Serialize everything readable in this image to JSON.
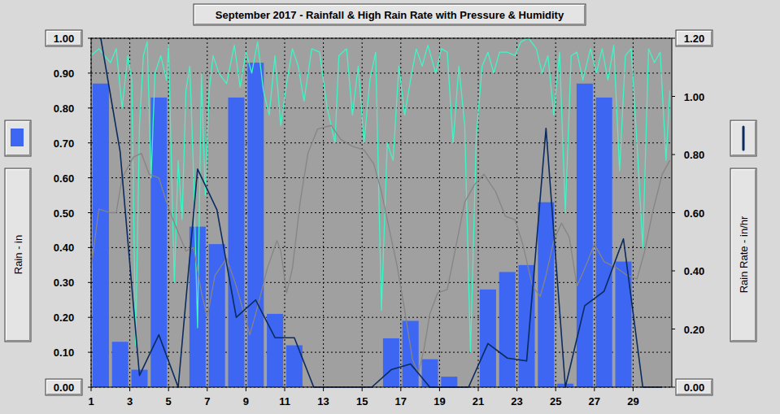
{
  "chart_data": {
    "type": "bar",
    "title": "September 2017 - Rainfall & High Rain Rate with Pressure & Humidity",
    "y_label": "Rain - in",
    "y2_label": "Rain Rate - in/hr",
    "x": [
      1.5,
      2.5,
      3.5,
      4.5,
      5.5,
      6.5,
      7.5,
      8.5,
      9.5,
      10.5,
      11.5,
      12.5,
      13.5,
      14.5,
      15.5,
      16.5,
      17.5,
      18.5,
      19.5,
      20.5,
      21.5,
      22.5,
      23.5,
      24.5,
      25.5,
      26.5,
      27.5,
      28.5,
      29.5,
      30.5
    ],
    "xlim": [
      1,
      31
    ],
    "xticks": [
      1,
      3,
      5,
      7,
      9,
      11,
      13,
      15,
      17,
      19,
      21,
      23,
      25,
      27,
      29
    ],
    "ylim": [
      0,
      1
    ],
    "yticks": [
      {
        "value": 0,
        "label": "0.00"
      },
      {
        "value": 0.1,
        "label": "0.10"
      },
      {
        "value": 0.2,
        "label": "0.20"
      },
      {
        "value": 0.3,
        "label": "0.30"
      },
      {
        "value": 0.4,
        "label": "0.40"
      },
      {
        "value": 0.5,
        "label": "0.50"
      },
      {
        "value": 0.6,
        "label": "0.60"
      },
      {
        "value": 0.7,
        "label": "0.70"
      },
      {
        "value": 0.8,
        "label": "0.80"
      },
      {
        "value": 0.9,
        "label": "0.90"
      },
      {
        "value": 1,
        "label": "1.00"
      }
    ],
    "y2lim": [
      0,
      1.2
    ],
    "y2ticks": [
      {
        "value": 0,
        "label": "0.00"
      },
      {
        "value": 0.2,
        "label": "0.20"
      },
      {
        "value": 0.4,
        "label": "0.40"
      },
      {
        "value": 0.6,
        "label": "0.60"
      },
      {
        "value": 0.8,
        "label": "0.80"
      },
      {
        "value": 1,
        "label": "1.00"
      },
      {
        "value": 1.2,
        "label": "1.20"
      }
    ],
    "grid": true,
    "series": [
      {
        "type": "bar",
        "color": "#3d66f2",
        "values": [
          0.87,
          0.13,
          0.05,
          0.83,
          0,
          0.46,
          0.41,
          0.83,
          0.93,
          0.21,
          0.12,
          0,
          0,
          0,
          0,
          0.14,
          0.19,
          0.08,
          0.03,
          0,
          0.28,
          0.33,
          0.35,
          0.53,
          0.01,
          0.87,
          0.83,
          0.36,
          0,
          0
        ]
      },
      {
        "type": "line",
        "color": "#3ff5c5",
        "x": [
          1.0,
          1.4,
          2.0,
          2.3,
          2.6,
          2.9,
          3.1,
          3.3,
          3.5,
          3.7,
          3.9,
          4.1,
          4.3,
          4.6,
          4.9,
          5.0,
          5.3,
          5.5,
          5.7,
          5.9,
          6.1,
          6.3,
          6.5,
          6.7,
          6.9,
          7.1,
          7.3,
          7.6,
          8.0,
          8.4,
          8.7,
          9.0,
          9.3,
          9.6,
          9.9,
          10.2,
          10.5,
          10.8,
          11.1,
          11.4,
          11.7,
          12.0,
          12.4,
          12.8,
          13.2,
          13.6,
          13.8,
          14.2,
          14.5,
          14.8,
          15.1,
          15.4,
          15.7,
          16.0,
          16.3,
          16.6,
          16.9,
          17.2,
          17.5,
          17.8,
          18.1,
          18.4,
          18.8,
          19.1,
          19.4,
          19.7,
          20.0,
          20.3,
          20.6,
          20.9,
          21.2,
          21.5,
          21.8,
          22.1,
          22.5,
          22.9,
          23.2,
          23.6,
          24.0,
          24.3,
          24.6,
          24.9,
          25.2,
          25.5,
          25.8,
          26.1,
          26.4,
          26.8,
          27.1,
          27.4,
          27.7,
          28.0,
          28.3,
          28.6,
          28.9,
          29.2,
          29.5,
          29.8,
          30.1,
          30.4,
          30.7,
          30.9
        ],
        "values": [
          0.95,
          0.97,
          0.93,
          0.97,
          0.8,
          0.95,
          0.88,
          0.12,
          0.75,
          0.95,
          0.99,
          0.6,
          0.9,
          0.95,
          0.88,
          0.98,
          0.3,
          0.65,
          0.48,
          0.85,
          0.92,
          0.6,
          0.17,
          0.9,
          0.55,
          0.85,
          0.95,
          0.9,
          0.87,
          0.98,
          0.86,
          0.96,
          0.9,
          0.99,
          0.85,
          0.78,
          0.95,
          0.75,
          0.87,
          0.97,
          0.92,
          0.82,
          0.97,
          0.96,
          0.8,
          0.7,
          0.95,
          0.97,
          0.78,
          0.92,
          0.7,
          0.88,
          0.96,
          0.22,
          0.7,
          0.65,
          0.92,
          0.78,
          0.88,
          0.97,
          0.92,
          0.98,
          0.9,
          0.97,
          0.96,
          0.7,
          0.92,
          0.75,
          0.1,
          0.72,
          0.92,
          0.96,
          0.9,
          0.96,
          0.96,
          0.95,
          0.99,
          1.0,
          0.97,
          0.9,
          0.95,
          0.78,
          0.96,
          0.5,
          0.95,
          0.96,
          0.88,
          0.97,
          0.9,
          0.97,
          0.88,
          0.98,
          0.62,
          0.95,
          0.97,
          0.7,
          0.4,
          0.97,
          0.93,
          0.96,
          0.65,
          0.85
        ]
      },
      {
        "type": "line",
        "color": "#858585",
        "x": [
          1.0,
          1.4,
          2.0,
          2.3,
          2.6,
          3.2,
          3.6,
          4.0,
          4.5,
          4.9,
          5.3,
          5.9,
          6.3,
          6.7,
          7.0,
          7.4,
          8.0,
          8.5,
          9.0,
          9.2,
          9.6,
          10.1,
          10.6,
          10.8,
          11.1,
          11.4,
          11.8,
          12.2,
          12.7,
          13.4,
          13.9,
          14.5,
          15.1,
          15.6,
          16.0,
          16.3,
          16.8,
          17.2,
          17.6,
          17.9,
          18.2,
          18.5,
          18.9,
          19.4,
          19.8,
          20.3,
          20.8,
          21.3,
          21.9,
          22.4,
          22.9,
          23.3,
          23.8,
          24.2,
          24.5,
          24.9,
          25.3,
          25.7,
          26.1,
          26.5,
          27.0,
          27.5,
          28.2,
          28.7,
          29.2,
          29.6,
          30.0,
          30.5,
          30.9
        ],
        "values": [
          0.34,
          0.51,
          0.5,
          0.5,
          0.6,
          0.66,
          0.67,
          0.61,
          0.6,
          0.53,
          0.47,
          0.39,
          0.4,
          0.27,
          0.2,
          0.32,
          0.37,
          0.29,
          0.19,
          0.15,
          0.23,
          0.34,
          0.42,
          0.39,
          0.27,
          0.34,
          0.53,
          0.67,
          0.74,
          0.75,
          0.71,
          0.69,
          0.68,
          0.64,
          0.56,
          0.48,
          0.35,
          0.22,
          0.08,
          0.04,
          0.11,
          0.21,
          0.27,
          0.28,
          0.39,
          0.53,
          0.58,
          0.61,
          0.56,
          0.49,
          0.48,
          0.41,
          0.29,
          0.26,
          0.32,
          0.42,
          0.47,
          0.43,
          0.29,
          0.34,
          0.41,
          0.36,
          0.34,
          0.32,
          0.31,
          0.39,
          0.5,
          0.61,
          0.65
        ]
      },
      {
        "type": "line",
        "axis": "y2",
        "color": "#0b2a5e",
        "values": [
          1.2,
          0.81,
          0.04,
          0.18,
          0,
          0.75,
          0.61,
          0.24,
          0.3,
          0.17,
          0.17,
          0,
          0,
          0,
          0,
          0.06,
          0.08,
          0,
          0,
          0,
          0.15,
          0.1,
          0.09,
          0.89,
          0,
          0.28,
          0.33,
          0.51,
          0,
          0
        ]
      }
    ]
  }
}
